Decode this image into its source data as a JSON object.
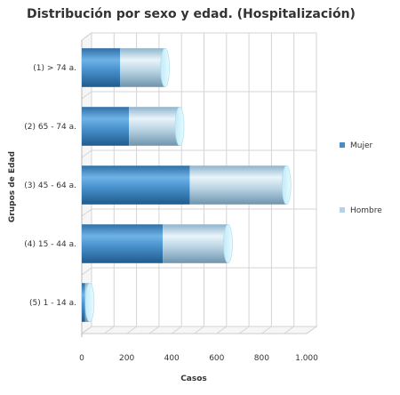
{
  "chart_data": {
    "type": "bar",
    "orientation": "horizontal",
    "stacked": true,
    "style": "3d-cylinder",
    "title": "Distribución por sexo y edad. (Hospitalización)",
    "xlabel": "Casos",
    "ylabel": "Grupos de Edad",
    "categories": [
      "(1) > 74 a.",
      "(2) 65 - 74 a.",
      "(3) 45 - 64 a.",
      "(4) 15 - 44 a.",
      "(5) 1 - 14 a."
    ],
    "series": [
      {
        "name": "Mujer",
        "values": [
          170,
          210,
          480,
          360,
          15
        ],
        "color": "#4a8dc4"
      },
      {
        "name": "Hombre",
        "values": [
          200,
          225,
          430,
          290,
          20
        ],
        "color": "#b0d4e8"
      }
    ],
    "xlim": [
      0,
      1000
    ],
    "xticks": [
      0,
      200,
      400,
      600,
      800,
      1000
    ],
    "xtick_labels": [
      "0",
      "200",
      "400",
      "600",
      "800",
      "1.000"
    ],
    "grid": true,
    "legend_position": "right"
  }
}
